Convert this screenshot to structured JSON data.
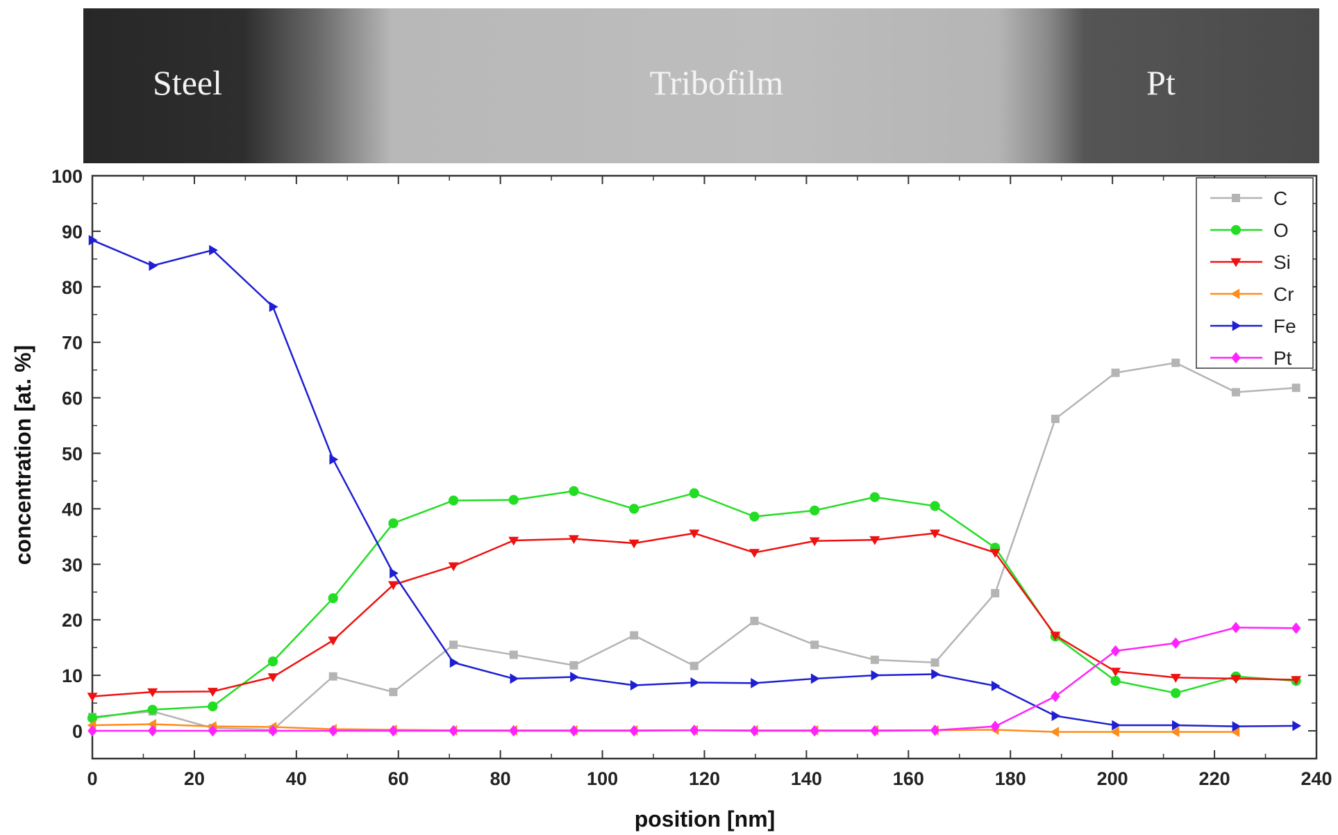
{
  "micrograph": {
    "labels": [
      "Steel",
      "Tribofilm",
      "Pt"
    ]
  },
  "chart_data": {
    "type": "line",
    "title": "",
    "xlabel": "position [nm]",
    "ylabel": "concentration [at. %]",
    "xlim": [
      0,
      240
    ],
    "ylim": [
      -5,
      100
    ],
    "xticks": [
      "0",
      "20",
      "40",
      "60",
      "80",
      "100",
      "120",
      "140",
      "160",
      "180",
      "200",
      "220",
      "240"
    ],
    "yticks": [
      "0",
      "10",
      "20",
      "30",
      "40",
      "50",
      "60",
      "70",
      "80",
      "90",
      "100"
    ],
    "grid": false,
    "legend_position": "top-right",
    "x": [
      0,
      11.8,
      23.6,
      35.4,
      47.2,
      59.0,
      70.8,
      82.6,
      94.4,
      106.2,
      118.0,
      129.8,
      141.6,
      153.4,
      165.2,
      177.0,
      188.8,
      200.6,
      212.4,
      224.2,
      236.0
    ],
    "series": [
      {
        "name": "C",
        "color": "#b4b4b4",
        "marker": "square",
        "values": [
          2.5,
          3.5,
          0.5,
          0.2,
          9.8,
          7.0,
          15.5,
          13.7,
          11.8,
          17.2,
          11.7,
          19.8,
          15.5,
          12.8,
          12.3,
          24.8,
          56.2,
          64.5,
          66.3,
          61.0,
          61.8
        ]
      },
      {
        "name": "O",
        "color": "#22dd22",
        "marker": "circle",
        "values": [
          2.3,
          3.8,
          4.4,
          12.5,
          23.9,
          37.4,
          41.5,
          41.6,
          43.2,
          40.0,
          42.8,
          38.6,
          39.7,
          42.1,
          40.5,
          33.0,
          17.0,
          9.0,
          6.8,
          9.8,
          9.0
        ]
      },
      {
        "name": "Si",
        "color": "#ee1111",
        "marker": "triangle-down",
        "values": [
          6.2,
          7.0,
          7.1,
          9.7,
          16.3,
          26.3,
          29.7,
          34.3,
          34.6,
          33.8,
          35.6,
          32.1,
          34.2,
          34.4,
          35.6,
          32.1,
          17.2,
          10.7,
          9.6,
          9.4,
          9.2
        ]
      },
      {
        "name": "Cr",
        "color": "#ff8c1a",
        "marker": "triangle-left",
        "values": [
          1.0,
          1.2,
          0.8,
          0.7,
          0.3,
          0.2,
          0.1,
          0.1,
          0.1,
          0.1,
          0.1,
          0.1,
          0.1,
          0.1,
          0.1,
          0.2,
          -0.2,
          -0.2,
          -0.2,
          -0.2,
          null
        ]
      },
      {
        "name": "Fe",
        "color": "#1e1ed2",
        "marker": "triangle-right",
        "values": [
          88.4,
          83.8,
          86.6,
          76.4,
          48.9,
          28.4,
          12.3,
          9.4,
          9.7,
          8.2,
          8.7,
          8.6,
          9.4,
          10.0,
          10.2,
          8.1,
          2.7,
          1.0,
          1.0,
          0.8,
          0.9
        ]
      },
      {
        "name": "Pt",
        "color": "#ff22ff",
        "marker": "diamond",
        "values": [
          0.0,
          0.0,
          0.0,
          0.0,
          0.0,
          0.0,
          0.0,
          0.0,
          0.0,
          0.0,
          0.1,
          0.0,
          0.0,
          0.0,
          0.1,
          0.8,
          6.2,
          14.4,
          15.8,
          18.6,
          18.5
        ]
      }
    ]
  }
}
